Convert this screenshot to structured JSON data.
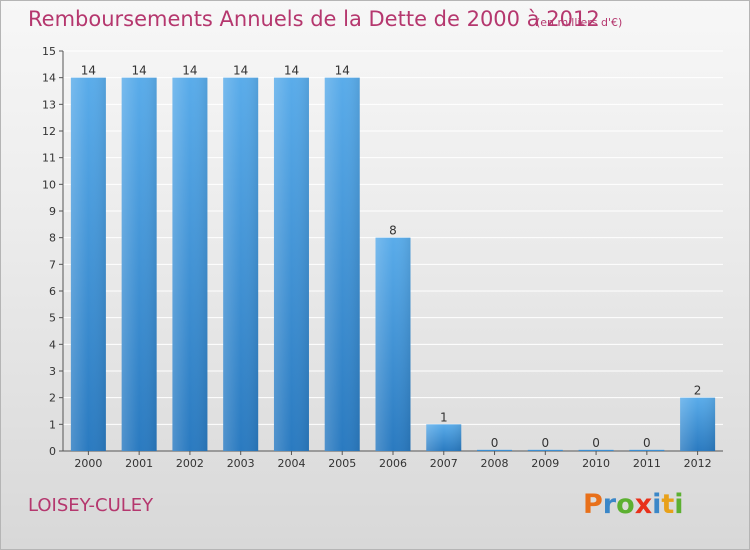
{
  "title": "Remboursements Annuels de la Dette de 2000 à 2012",
  "subtitle": "(en milliers d'€)",
  "commune": "LOISEY-CULEY",
  "logo": {
    "text": "Proxiti"
  },
  "colors": {
    "title": "#b5376e",
    "bar_top": "#5aacea",
    "bar_bottom": "#2a7ac0",
    "background": "#e8e8e8"
  },
  "chart_data": {
    "type": "bar",
    "title": "Remboursements Annuels de la Dette de 2000 à 2012",
    "subtitle": "(en milliers d'€)",
    "xlabel": "",
    "ylabel": "",
    "categories": [
      "2000",
      "2001",
      "2002",
      "2003",
      "2004",
      "2005",
      "2006",
      "2007",
      "2008",
      "2009",
      "2010",
      "2011",
      "2012"
    ],
    "values": [
      14,
      14,
      14,
      14,
      14,
      14,
      8,
      1,
      0,
      0,
      0,
      0,
      2
    ],
    "value_labels": [
      "14",
      "14",
      "14",
      "14",
      "14",
      "14",
      "8",
      "1",
      "0",
      "0",
      "0",
      "0",
      "2"
    ],
    "ylim": [
      0,
      15
    ],
    "yticks": [
      "0",
      "1",
      "2",
      "3",
      "4",
      "5",
      "6",
      "7",
      "8",
      "9",
      "10",
      "11",
      "12",
      "13",
      "14",
      "15"
    ],
    "grid": true
  }
}
